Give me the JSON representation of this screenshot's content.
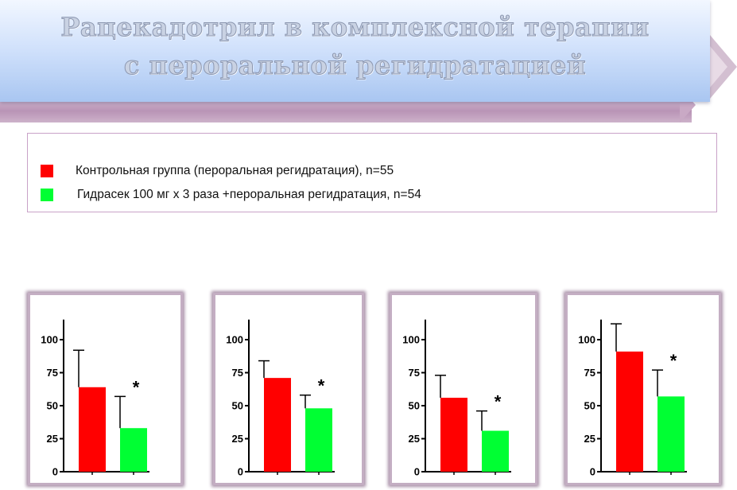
{
  "title": {
    "line1": "Рацекадотрил в комплексной терапии",
    "line2": "с пероральной регидратацией"
  },
  "legend": [
    {
      "label": "Контрольная группа (пероральная регидратация), n=55",
      "color": "#ff0000"
    },
    {
      "label": "Гидрасек 100 мг x 3 раза +пероральная регидратация, n=54",
      "color": "#00ff33"
    }
  ],
  "colors": {
    "control": "#ff0000",
    "treatment": "#00ff33",
    "panel_border": "#b59ab4"
  },
  "chart_data": [
    {
      "type": "bar",
      "ylim": [
        0,
        120
      ],
      "yticks": [
        "0",
        "25",
        "50",
        "75",
        "100"
      ],
      "series": [
        {
          "values": [
            64
          ],
          "error": [
            28
          ]
        },
        {
          "values": [
            33
          ],
          "error": [
            24
          ]
        }
      ],
      "significance": [
        "",
        "*"
      ]
    },
    {
      "type": "bar",
      "ylim": [
        0,
        120
      ],
      "yticks": [
        "0",
        "25",
        "50",
        "75",
        "100"
      ],
      "series": [
        {
          "values": [
            71
          ],
          "error": [
            13
          ]
        },
        {
          "values": [
            48
          ],
          "error": [
            10
          ]
        }
      ],
      "significance": [
        "",
        "*"
      ]
    },
    {
      "type": "bar",
      "ylim": [
        0,
        120
      ],
      "yticks": [
        "0",
        "25",
        "50",
        "75",
        "100"
      ],
      "series": [
        {
          "values": [
            56
          ],
          "error": [
            17
          ]
        },
        {
          "values": [
            31
          ],
          "error": [
            15
          ]
        }
      ],
      "significance": [
        "",
        "*"
      ]
    },
    {
      "type": "bar",
      "ylim": [
        0,
        120
      ],
      "yticks": [
        "0",
        "25",
        "50",
        "75",
        "100"
      ],
      "series": [
        {
          "values": [
            91
          ],
          "error": [
            21
          ]
        },
        {
          "values": [
            57
          ],
          "error": [
            20
          ]
        }
      ],
      "significance": [
        "",
        "*"
      ]
    }
  ]
}
